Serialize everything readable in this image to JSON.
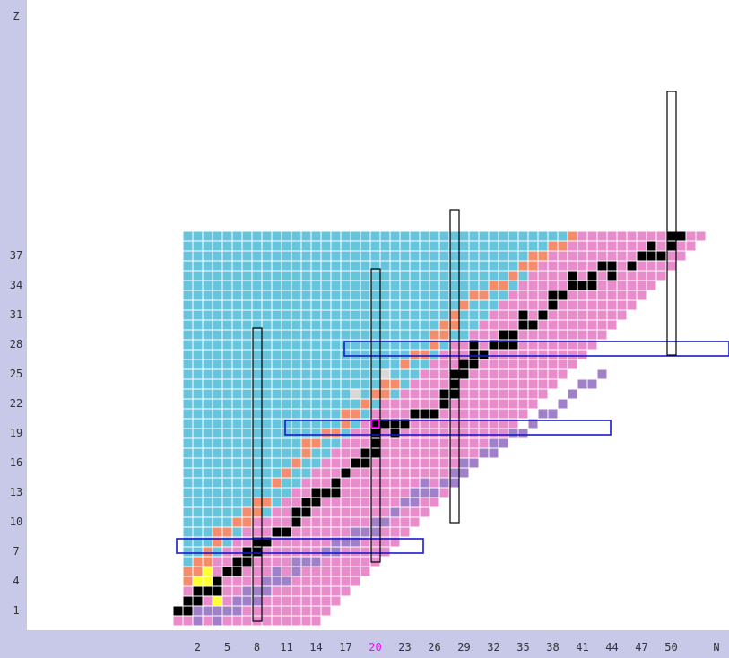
{
  "colors": {
    "background": "#ffffff",
    "frame": "#c8c8e8",
    "stable": "#000000",
    "beta_minus": "#e88ccc",
    "beta_plus": "#66c4dc",
    "proton_emission": "#f58c6c",
    "neutron_emission": "#a080c8",
    "alpha": "#ffff33",
    "unknown": "#d8d8d8",
    "magic_box": "#1a1acc",
    "magic_label": "#ff00ff"
  },
  "chart_data": {
    "type": "heatmap",
    "xlabel": "N",
    "ylabel": "Z",
    "x_ticks": [
      2,
      5,
      8,
      11,
      14,
      17,
      20,
      23,
      26,
      29,
      32,
      35,
      38,
      41,
      44,
      47,
      50
    ],
    "y_ticks": [
      1,
      4,
      7,
      10,
      13,
      16,
      19,
      22,
      25,
      28,
      31,
      34,
      37
    ],
    "highlight_tick": 20,
    "xlim": [
      0,
      55
    ],
    "ylim": [
      0,
      39
    ],
    "magic_numbers": [
      8,
      20,
      28,
      50
    ],
    "beta_minus_upper": [
      [
        0,
        1
      ],
      [
        1,
        3
      ],
      [
        2,
        4
      ],
      [
        3,
        5
      ],
      [
        4,
        6
      ],
      [
        5,
        7
      ],
      [
        6,
        8
      ],
      [
        7,
        9
      ],
      [
        8,
        10
      ],
      [
        9,
        10
      ],
      [
        10,
        11
      ],
      [
        11,
        12
      ],
      [
        12,
        13
      ],
      [
        13,
        14
      ],
      [
        14,
        15
      ],
      [
        15,
        16
      ],
      [
        16,
        17
      ],
      [
        17,
        18
      ],
      [
        18,
        19
      ],
      [
        19,
        20
      ],
      [
        20,
        21
      ],
      [
        21,
        22
      ],
      [
        22,
        22
      ],
      [
        23,
        23
      ],
      [
        24,
        24
      ],
      [
        25,
        25
      ],
      [
        26,
        26
      ],
      [
        27,
        27
      ],
      [
        28,
        28
      ],
      [
        29,
        28
      ],
      [
        30,
        29
      ],
      [
        31,
        30
      ],
      [
        32,
        31
      ],
      [
        33,
        32
      ],
      [
        34,
        33
      ],
      [
        35,
        34
      ],
      [
        36,
        35
      ],
      [
        37,
        36
      ],
      [
        38,
        37
      ],
      [
        39,
        38
      ],
      [
        40,
        38
      ],
      [
        41,
        39
      ]
    ],
    "beta_minus_bottom_start": 14,
    "beta_minus_bottom_offset": 14,
    "proton_edge": [
      [
        1,
        0
      ],
      [
        2,
        1
      ],
      [
        3,
        1
      ],
      [
        4,
        1
      ],
      [
        5,
        2
      ],
      [
        6,
        2
      ],
      [
        7,
        3
      ],
      [
        8,
        3
      ],
      [
        9,
        4
      ],
      [
        10,
        4
      ],
      [
        11,
        5
      ],
      [
        12,
        5
      ],
      [
        13,
        6
      ],
      [
        14,
        6
      ],
      [
        15,
        7
      ],
      [
        16,
        7
      ],
      [
        17,
        8
      ],
      [
        18,
        8
      ],
      [
        19,
        9
      ],
      [
        20,
        9
      ],
      [
        21,
        10
      ],
      [
        22,
        11
      ],
      [
        23,
        12
      ],
      [
        24,
        13
      ],
      [
        25,
        13
      ],
      [
        26,
        14
      ],
      [
        27,
        15
      ],
      [
        28,
        16
      ],
      [
        29,
        16
      ],
      [
        30,
        17
      ],
      [
        31,
        18
      ],
      [
        32,
        19
      ],
      [
        33,
        19
      ],
      [
        34,
        20
      ],
      [
        35,
        21
      ],
      [
        36,
        22
      ],
      [
        37,
        23
      ],
      [
        38,
        24
      ],
      [
        39,
        25
      ]
    ],
    "stable_nuclides": [
      [
        0,
        1
      ],
      [
        1,
        1
      ],
      [
        1,
        2
      ],
      [
        2,
        2
      ],
      [
        2,
        3
      ],
      [
        3,
        3
      ],
      [
        4,
        3
      ],
      [
        4,
        4
      ],
      [
        5,
        5
      ],
      [
        6,
        5
      ],
      [
        6,
        6
      ],
      [
        7,
        6
      ],
      [
        7,
        7
      ],
      [
        8,
        7
      ],
      [
        8,
        8
      ],
      [
        9,
        8
      ],
      [
        10,
        9
      ],
      [
        11,
        9
      ],
      [
        12,
        10
      ],
      [
        12,
        11
      ],
      [
        13,
        11
      ],
      [
        13,
        12
      ],
      [
        14,
        12
      ],
      [
        14,
        13
      ],
      [
        15,
        13
      ],
      [
        16,
        13
      ],
      [
        16,
        14
      ],
      [
        17,
        15
      ],
      [
        18,
        16
      ],
      [
        19,
        16
      ],
      [
        19,
        17
      ],
      [
        20,
        17
      ],
      [
        20,
        18
      ],
      [
        20,
        19
      ],
      [
        20,
        20
      ],
      [
        21,
        20
      ],
      [
        22,
        20
      ],
      [
        22,
        19
      ],
      [
        23,
        20
      ],
      [
        24,
        21
      ],
      [
        25,
        21
      ],
      [
        26,
        21
      ],
      [
        27,
        22
      ],
      [
        27,
        23
      ],
      [
        28,
        23
      ],
      [
        28,
        24
      ],
      [
        28,
        25
      ],
      [
        29,
        25
      ],
      [
        29,
        26
      ],
      [
        30,
        26
      ],
      [
        30,
        27
      ],
      [
        31,
        27
      ],
      [
        30,
        28
      ],
      [
        32,
        28
      ],
      [
        33,
        28
      ],
      [
        33,
        29
      ],
      [
        34,
        28
      ],
      [
        34,
        29
      ],
      [
        35,
        30
      ],
      [
        36,
        30
      ],
      [
        35,
        31
      ],
      [
        37,
        31
      ],
      [
        38,
        32
      ],
      [
        38,
        33
      ],
      [
        39,
        33
      ],
      [
        40,
        34
      ],
      [
        41,
        34
      ],
      [
        40,
        35
      ],
      [
        42,
        34
      ],
      [
        42,
        35
      ],
      [
        43,
        36
      ],
      [
        44,
        35
      ],
      [
        44,
        36
      ],
      [
        46,
        36
      ],
      [
        47,
        37
      ],
      [
        48,
        37
      ],
      [
        48,
        38
      ],
      [
        49,
        37
      ],
      [
        50,
        38
      ],
      [
        50,
        39
      ],
      [
        51,
        39
      ]
    ],
    "alpha_cells": [
      [
        2,
        4
      ],
      [
        3,
        4
      ],
      [
        2,
        3
      ],
      [
        4,
        3
      ],
      [
        3,
        5
      ],
      [
        4,
        2
      ]
    ],
    "unknown_cells": [
      [
        18,
        23
      ],
      [
        21,
        25
      ]
    ],
    "neutron_cells": [
      [
        2,
        0
      ],
      [
        2,
        1
      ],
      [
        3,
        1
      ],
      [
        4,
        1
      ],
      [
        4,
        0
      ],
      [
        5,
        1
      ],
      [
        6,
        1
      ],
      [
        6,
        2
      ],
      [
        7,
        2
      ],
      [
        8,
        2
      ],
      [
        7,
        3
      ],
      [
        8,
        3
      ],
      [
        9,
        3
      ],
      [
        9,
        4
      ],
      [
        10,
        4
      ],
      [
        11,
        4
      ],
      [
        10,
        5
      ],
      [
        12,
        5
      ],
      [
        12,
        6
      ],
      [
        13,
        6
      ],
      [
        14,
        6
      ],
      [
        15,
        7
      ],
      [
        16,
        7
      ],
      [
        16,
        8
      ],
      [
        17,
        8
      ],
      [
        18,
        8
      ],
      [
        18,
        9
      ],
      [
        19,
        9
      ],
      [
        20,
        9
      ],
      [
        20,
        10
      ],
      [
        21,
        10
      ],
      [
        22,
        11
      ],
      [
        23,
        12
      ],
      [
        24,
        12
      ],
      [
        24,
        13
      ],
      [
        25,
        13
      ],
      [
        26,
        13
      ],
      [
        25,
        14
      ],
      [
        27,
        14
      ],
      [
        28,
        14
      ],
      [
        28,
        15
      ],
      [
        29,
        15
      ],
      [
        29,
        16
      ],
      [
        30,
        16
      ],
      [
        31,
        17
      ],
      [
        32,
        17
      ],
      [
        32,
        18
      ],
      [
        33,
        18
      ],
      [
        34,
        19
      ],
      [
        35,
        19
      ],
      [
        36,
        20
      ],
      [
        37,
        21
      ],
      [
        38,
        21
      ],
      [
        39,
        22
      ],
      [
        40,
        23
      ],
      [
        41,
        24
      ],
      [
        42,
        24
      ],
      [
        43,
        25
      ]
    ],
    "magic_boxes": [
      {
        "axis": "Z",
        "value": 8,
        "range": [
          0,
          25
        ]
      },
      {
        "axis": "Z",
        "value": 20,
        "range": [
          11,
          44
        ]
      },
      {
        "axis": "Z",
        "value": 28,
        "range": [
          17,
          56
        ]
      },
      {
        "axis": "N",
        "value": 8,
        "range": [
          0,
          29
        ]
      },
      {
        "axis": "N",
        "value": 20,
        "range": [
          6,
          35
        ]
      },
      {
        "axis": "N",
        "value": 28,
        "range": [
          10,
          41
        ]
      },
      {
        "axis": "N",
        "value": 50,
        "range": [
          27,
          53
        ]
      }
    ]
  }
}
